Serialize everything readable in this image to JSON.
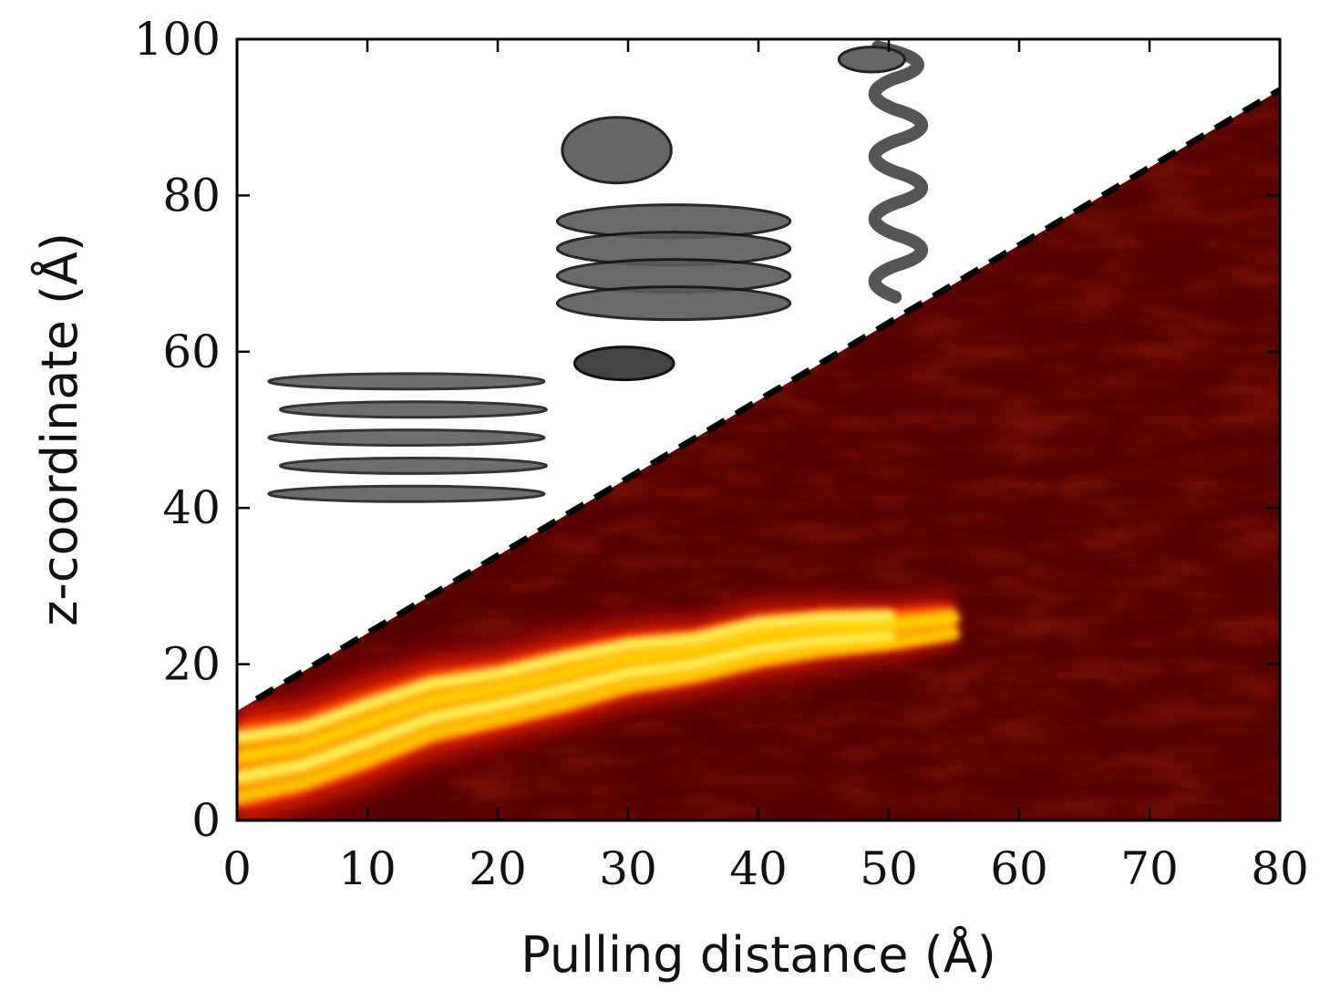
{
  "chart_data": {
    "type": "heatmap",
    "title": "",
    "xlabel": "Pulling distance (Å)",
    "ylabel": "z-coordinate (Å)",
    "xlim": [
      0,
      80
    ],
    "ylim": [
      0,
      100
    ],
    "xticks": [
      0,
      10,
      20,
      30,
      40,
      50,
      60,
      70,
      80
    ],
    "yticks": [
      0,
      20,
      40,
      60,
      80,
      100
    ],
    "colormap": [
      "#4a0000",
      "#7a0600",
      "#b01000",
      "#e02000",
      "#ff4a00",
      "#ff9a00",
      "#ffd800",
      "#ffff60"
    ],
    "background_color": "#560300",
    "boundary_line": {
      "style": "dashed",
      "color": "#000000",
      "x": [
        1.5,
        80
      ],
      "y": [
        15.5,
        93.5
      ]
    },
    "density_ridge": {
      "x": [
        0,
        5,
        10,
        15,
        20,
        25,
        30,
        35,
        40,
        45,
        50,
        55
      ],
      "y": [
        7,
        8.5,
        11.5,
        14.5,
        16,
        18,
        20,
        21,
        23,
        24,
        24.5,
        25.5
      ],
      "band_width": [
        13,
        12,
        12,
        11,
        10,
        10,
        9,
        8,
        8,
        7,
        6,
        5
      ],
      "intensity": [
        1.0,
        1.0,
        1.0,
        1.0,
        1.0,
        0.95,
        0.9,
        0.85,
        0.8,
        0.75,
        0.6,
        0.4
      ]
    },
    "insets": [
      {
        "name": "stacked-layers-structure",
        "x_range": [
          2,
          24
        ],
        "y_range": [
          40,
          58
        ]
      },
      {
        "name": "partially-unstacked-structure",
        "x_range": [
          24,
          43
        ],
        "y_range": [
          55,
          90
        ]
      },
      {
        "name": "twisted-strand-structure",
        "x_range": [
          46,
          55
        ],
        "y_range": [
          67,
          99
        ]
      }
    ]
  }
}
